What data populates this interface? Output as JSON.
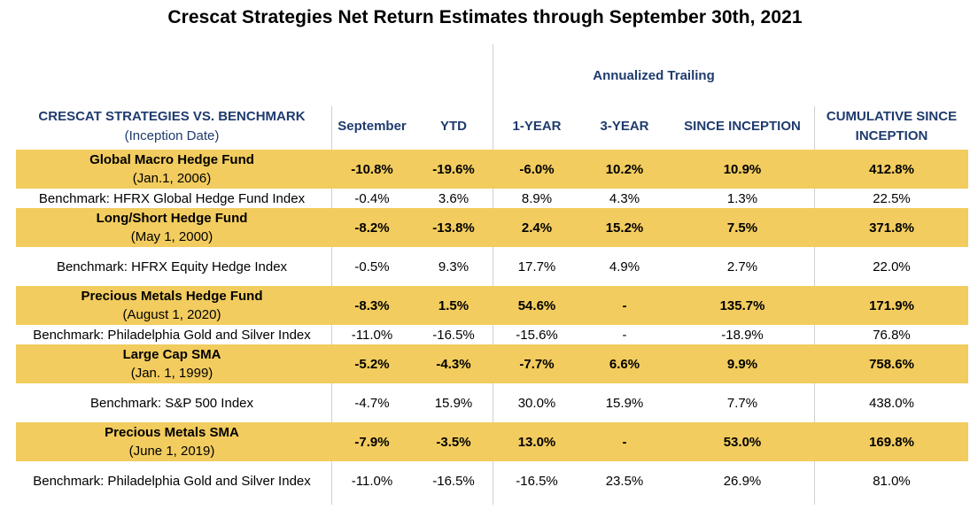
{
  "chart_data": {
    "type": "table",
    "title": "Crescat Strategies Net Return Estimates through September 30th, 2021",
    "group_header": "Annualized Trailing",
    "header": {
      "name": "CRESCAT STRATEGIES VS. BENCHMARK",
      "name_sub": "(Inception Date)",
      "columns": [
        "September",
        "YTD",
        "1-YEAR",
        "3-YEAR",
        "SINCE INCEPTION",
        "CUMULATIVE SINCE INCEPTION"
      ]
    },
    "rows": [
      {
        "kind": "strategy",
        "name": "Global Macro Hedge Fund",
        "date": "(Jan.1, 2006)",
        "values": [
          "-10.8%",
          "-19.6%",
          "-6.0%",
          "10.2%",
          "10.9%",
          "412.8%"
        ]
      },
      {
        "kind": "benchmark",
        "name": "Benchmark: HFRX Global Hedge Fund Index",
        "values": [
          "-0.4%",
          "3.6%",
          "8.9%",
          "4.3%",
          "1.3%",
          "22.5%"
        ]
      },
      {
        "kind": "strategy",
        "name": "Long/Short Hedge Fund",
        "date": "(May 1, 2000)",
        "values": [
          "-8.2%",
          "-13.8%",
          "2.4%",
          "15.2%",
          "7.5%",
          "371.8%"
        ]
      },
      {
        "kind": "benchmark",
        "name": "Benchmark: HFRX Equity Hedge Index",
        "values": [
          "-0.5%",
          "9.3%",
          "17.7%",
          "4.9%",
          "2.7%",
          "22.0%"
        ]
      },
      {
        "kind": "strategy",
        "name": "Precious Metals Hedge Fund",
        "date": "(August 1, 2020)",
        "values": [
          "-8.3%",
          "1.5%",
          "54.6%",
          "-",
          "135.7%",
          "171.9%"
        ]
      },
      {
        "kind": "benchmark",
        "name": "Benchmark: Philadelphia Gold and Silver Index",
        "values": [
          "-11.0%",
          "-16.5%",
          "-15.6%",
          "-",
          "-18.9%",
          "76.8%"
        ]
      },
      {
        "kind": "strategy",
        "name": "Large Cap SMA",
        "date": "(Jan. 1, 1999)",
        "values": [
          "-5.2%",
          "-4.3%",
          "-7.7%",
          "6.6%",
          "9.9%",
          "758.6%"
        ]
      },
      {
        "kind": "benchmark",
        "name": "Benchmark: S&P 500 Index",
        "values": [
          "-4.7%",
          "15.9%",
          "30.0%",
          "15.9%",
          "7.7%",
          "438.0%"
        ]
      },
      {
        "kind": "strategy",
        "name": "Precious Metals SMA",
        "date": "(June 1, 2019)",
        "values": [
          "-7.9%",
          "-3.5%",
          "13.0%",
          "-",
          "53.0%",
          "169.8%"
        ]
      },
      {
        "kind": "benchmark",
        "name": "Benchmark: Philadelphia Gold and Silver Index",
        "values": [
          "-11.0%",
          "-16.5%",
          "-16.5%",
          "23.5%",
          "26.9%",
          "81.0%"
        ]
      }
    ],
    "colors": {
      "strategy_row": "#f2cc5e",
      "header_text": "#1f3b6e"
    }
  }
}
